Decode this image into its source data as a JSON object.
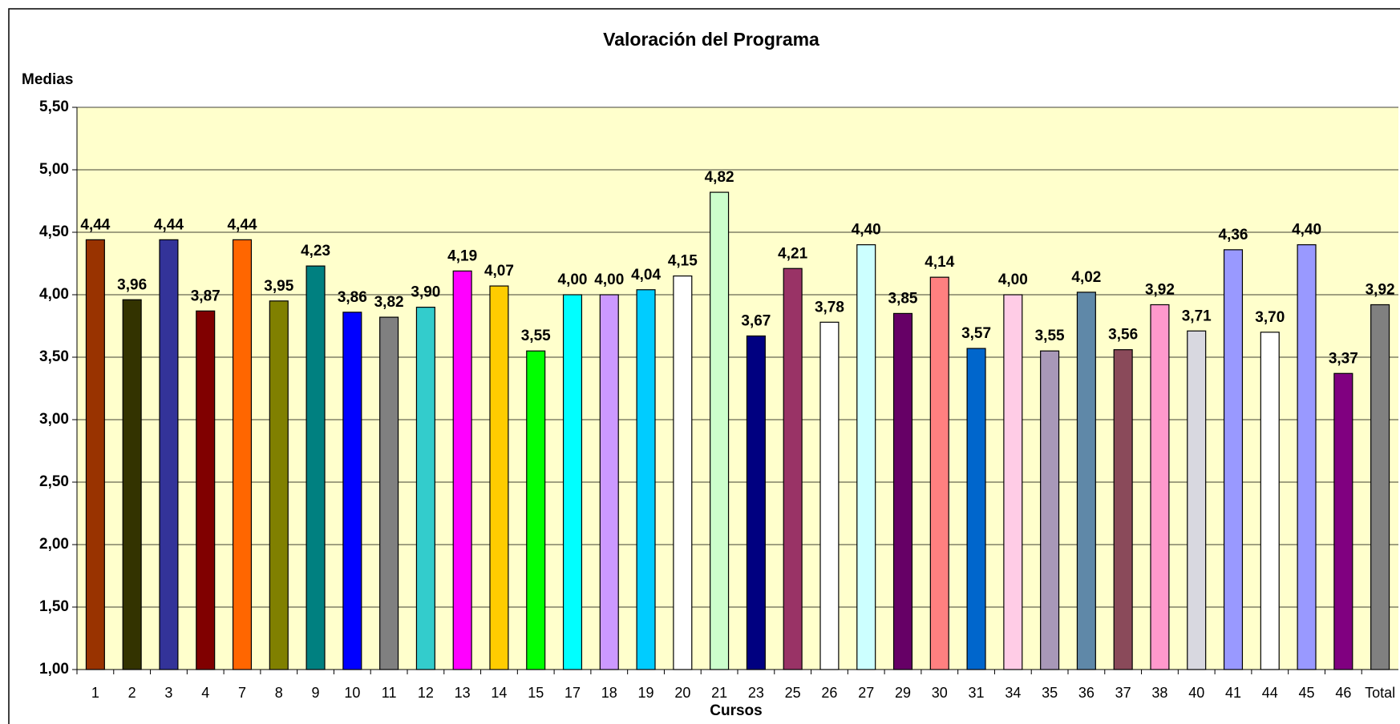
{
  "chart_data": {
    "type": "bar",
    "title": "Valoración del Programa",
    "y_label": "Medias",
    "x_label": "Cursos",
    "categories": [
      "1",
      "2",
      "3",
      "4",
      "7",
      "8",
      "9",
      "10",
      "11",
      "12",
      "13",
      "14",
      "15",
      "17",
      "18",
      "19",
      "20",
      "21",
      "23",
      "25",
      "26",
      "27",
      "29",
      "30",
      "31",
      "34",
      "35",
      "36",
      "37",
      "38",
      "40",
      "41",
      "44",
      "45",
      "46",
      "Total"
    ],
    "values": [
      4.44,
      3.96,
      4.44,
      3.87,
      4.44,
      3.95,
      4.23,
      3.86,
      3.82,
      3.9,
      4.19,
      4.07,
      3.55,
      4.0,
      4.0,
      4.04,
      4.15,
      4.82,
      3.67,
      4.21,
      3.78,
      4.4,
      3.85,
      4.14,
      3.57,
      4.0,
      3.55,
      4.02,
      3.56,
      3.92,
      3.71,
      4.36,
      3.7,
      4.4,
      3.37,
      3.92
    ],
    "value_labels": [
      "4,44",
      "3,96",
      "4,44",
      "3,87",
      "4,44",
      "3,95",
      "4,23",
      "3,86",
      "3,82",
      "3,90",
      "4,19",
      "4,07",
      "3,55",
      "4,00",
      "4,00",
      "4,04",
      "4,15",
      "4,82",
      "3,67",
      "4,21",
      "3,78",
      "4,40",
      "3,85",
      "4,14",
      "3,57",
      "4,00",
      "3,55",
      "4,02",
      "3,56",
      "3,92",
      "3,71",
      "4,36",
      "3,70",
      "4,40",
      "3,37",
      "3,92"
    ],
    "colors": [
      "#993300",
      "#333300",
      "#333399",
      "#800000",
      "#ff6600",
      "#808000",
      "#008080",
      "#0000ff",
      "#808080",
      "#33cccc",
      "#ff00ff",
      "#ffcc00",
      "#00ff00",
      "#00ffff",
      "#cc99ff",
      "#00ccff",
      "#ffffff",
      "#ccffcc",
      "#000080",
      "#993366",
      "#ffffff",
      "#ccffff",
      "#660066",
      "#ff8080",
      "#0066cc",
      "#ffcce6",
      "#a898b8",
      "#5f88a8",
      "#8a4a5a",
      "#ff99cc",
      "#d8d8e0",
      "#9999ff",
      "#ffffff",
      "#9999ff",
      "#800080",
      "#808080"
    ],
    "ylim": [
      1,
      5.5
    ],
    "yticks": [
      {
        "value": 1,
        "label": "1,00"
      },
      {
        "value": 1.5,
        "label": "1,50"
      },
      {
        "value": 2,
        "label": "2,00"
      },
      {
        "value": 2.5,
        "label": "2,50"
      },
      {
        "value": 3,
        "label": "3,00"
      },
      {
        "value": 3.5,
        "label": "3,50"
      },
      {
        "value": 4,
        "label": "4,00"
      },
      {
        "value": 4.5,
        "label": "4,50"
      },
      {
        "value": 5,
        "label": "5,00"
      },
      {
        "value": 5.5,
        "label": "5,50"
      }
    ],
    "grid": true
  }
}
